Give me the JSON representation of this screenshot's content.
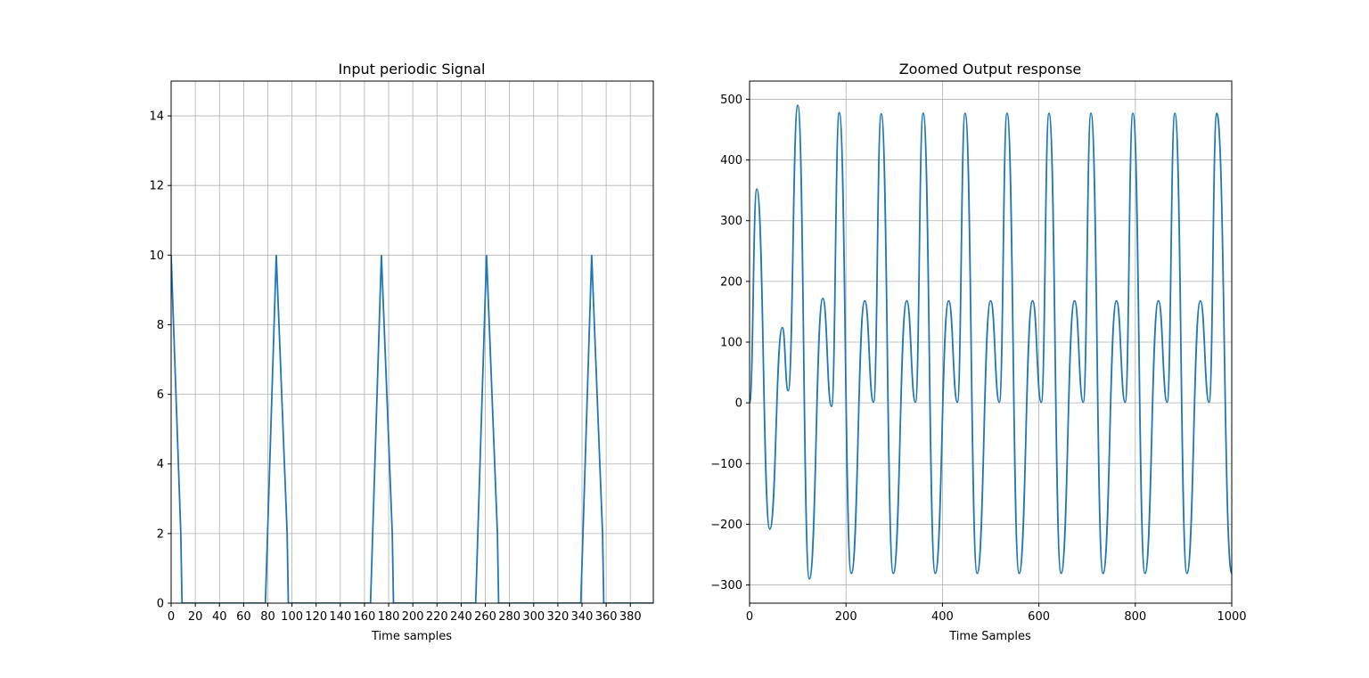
{
  "chart_data": [
    {
      "type": "line",
      "title": "Input periodic Signal",
      "xlabel": "Time samples",
      "ylabel": "",
      "xlim": [
        0,
        399
      ],
      "ylim": [
        0,
        15
      ],
      "grid": true,
      "color": "#1f77b4",
      "x_ticks": [
        0,
        20,
        40,
        60,
        80,
        100,
        120,
        140,
        160,
        180,
        200,
        220,
        240,
        260,
        280,
        300,
        320,
        340,
        360,
        380
      ],
      "x_tick_labels": [
        "0",
        "20",
        "40",
        "60",
        "80",
        "100",
        "120",
        "140",
        "160",
        "180",
        "200",
        "220",
        "240",
        "260",
        "280",
        "300",
        "320",
        "340",
        "360",
        "380"
      ],
      "y_ticks": [
        0,
        2,
        4,
        6,
        8,
        10,
        12,
        14
      ],
      "y_tick_labels": [
        "0",
        "2",
        "4",
        "6",
        "8",
        "10",
        "12",
        "14"
      ],
      "series": [
        {
          "x": [
            0,
            8,
            9,
            78,
            87,
            96,
            97,
            165,
            174,
            183,
            184,
            252,
            261,
            270,
            271,
            339,
            348,
            357,
            358,
            399
          ],
          "y": [
            10,
            2,
            0,
            0,
            10,
            2,
            0,
            0,
            10,
            2,
            0,
            0,
            10,
            2,
            0,
            0,
            10,
            2,
            0,
            0
          ]
        }
      ]
    },
    {
      "type": "line",
      "title": "Zoomed Output response",
      "xlabel": "Time Samples",
      "ylabel": "",
      "xlim": [
        0,
        1000
      ],
      "ylim": [
        -330,
        530
      ],
      "grid": true,
      "color": "#1f77b4",
      "x_ticks": [
        0,
        200,
        400,
        600,
        800,
        1000
      ],
      "x_tick_labels": [
        "0",
        "200",
        "400",
        "600",
        "800",
        "1000"
      ],
      "y_ticks": [
        -300,
        -200,
        -100,
        0,
        100,
        200,
        300,
        400,
        500
      ],
      "y_tick_labels": [
        "−300",
        "−200",
        "−100",
        "0",
        "100",
        "200",
        "300",
        "400",
        "500"
      ],
      "series": [
        {
          "x": [
            0,
            15,
            42,
            68,
            80,
            100,
            124,
            152,
            170,
            186,
            211,
            239,
            257,
            273,
            298,
            326,
            344,
            360,
            385,
            413,
            431,
            447,
            472,
            500,
            518,
            534,
            559,
            587,
            605,
            621,
            646,
            674,
            692,
            708,
            733,
            761,
            779,
            795,
            820,
            848,
            866,
            882,
            907,
            935,
            953,
            969,
            1000
          ],
          "y": [
            0,
            352,
            -208,
            124,
            20,
            490,
            -290,
            172,
            -6,
            478,
            -281,
            168,
            1,
            476,
            -281,
            168,
            1,
            477,
            -281,
            168,
            1,
            477,
            -281,
            168,
            1,
            477,
            -281,
            168,
            1,
            477,
            -281,
            168,
            1,
            477,
            -281,
            168,
            1,
            477,
            -281,
            168,
            1,
            477,
            -281,
            168,
            1,
            477,
            -281
          ]
        }
      ]
    }
  ]
}
